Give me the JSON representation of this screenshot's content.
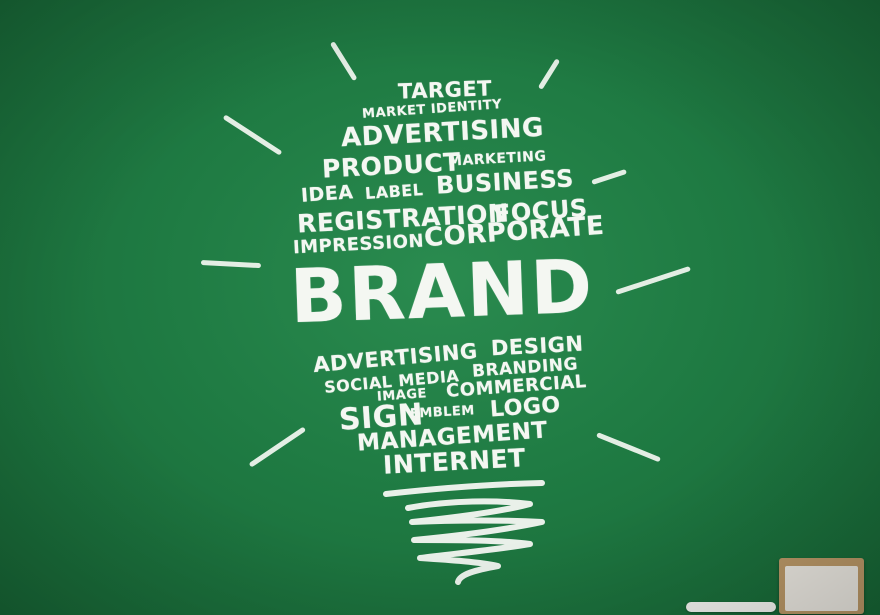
{
  "words": {
    "target": "TARGET",
    "market_identity": "MARKET IDENTITY",
    "advertising_top": "ADVERTISING",
    "product": "PRODUCT",
    "marketing": "MARKETING",
    "idea": "IDEA",
    "label": "LABEL",
    "business": "BUSINESS",
    "registration": "REGISTRATION",
    "focus": "FOCUS",
    "impression": "IMPRESSION",
    "corporate": "CORPORATE",
    "brand": "BRAND",
    "advertising_bottom": "ADVERTISING",
    "design": "DESIGN",
    "social_media": "SOCIAL MEDIA",
    "branding": "BRANDING",
    "image": "IMAGE",
    "commercial": "COMMERCIAL",
    "sign": "SIGN",
    "emblem": "EMBLEM",
    "logo": "LOGO",
    "management": "MANAGEMENT",
    "internet": "INTERNET"
  },
  "colors": {
    "chalkboard": "#1f7b43",
    "chalk": "#f4f7f2",
    "eraser_wood": "#b89666",
    "eraser_felt": "#e9e6df"
  }
}
